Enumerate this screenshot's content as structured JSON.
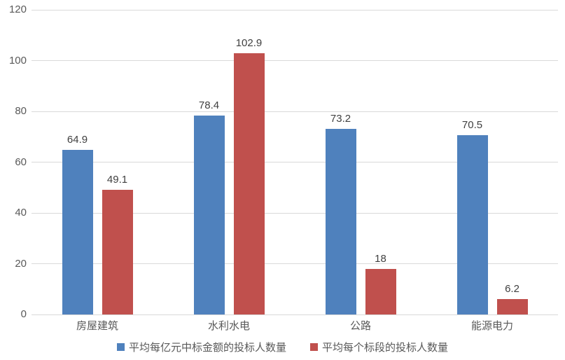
{
  "chart_data": {
    "type": "bar",
    "title": "",
    "xlabel": "",
    "ylabel": "",
    "categories": [
      "房屋建筑",
      "水利水电",
      "公路",
      "能源电力"
    ],
    "series": [
      {
        "name": "平均每亿元中标金额的投标人数量",
        "color": "#4F81BD",
        "values": [
          64.9,
          78.4,
          73.2,
          70.5
        ]
      },
      {
        "name": "平均每个标段的投标人数量",
        "color": "#C0504D",
        "values": [
          49.1,
          102.9,
          18,
          6.2
        ]
      }
    ],
    "ylim": [
      0,
      120
    ],
    "yticks": [
      0,
      20,
      40,
      60,
      80,
      100,
      120
    ],
    "grid": true,
    "legend_position": "bottom",
    "data_labels": true
  },
  "colors": {
    "background": "#FFFFFF",
    "gridline": "#D9D9D9",
    "axis_text": "#595959",
    "category_text": "#595959",
    "data_label_text": "#404040",
    "legend_text": "#595959"
  }
}
